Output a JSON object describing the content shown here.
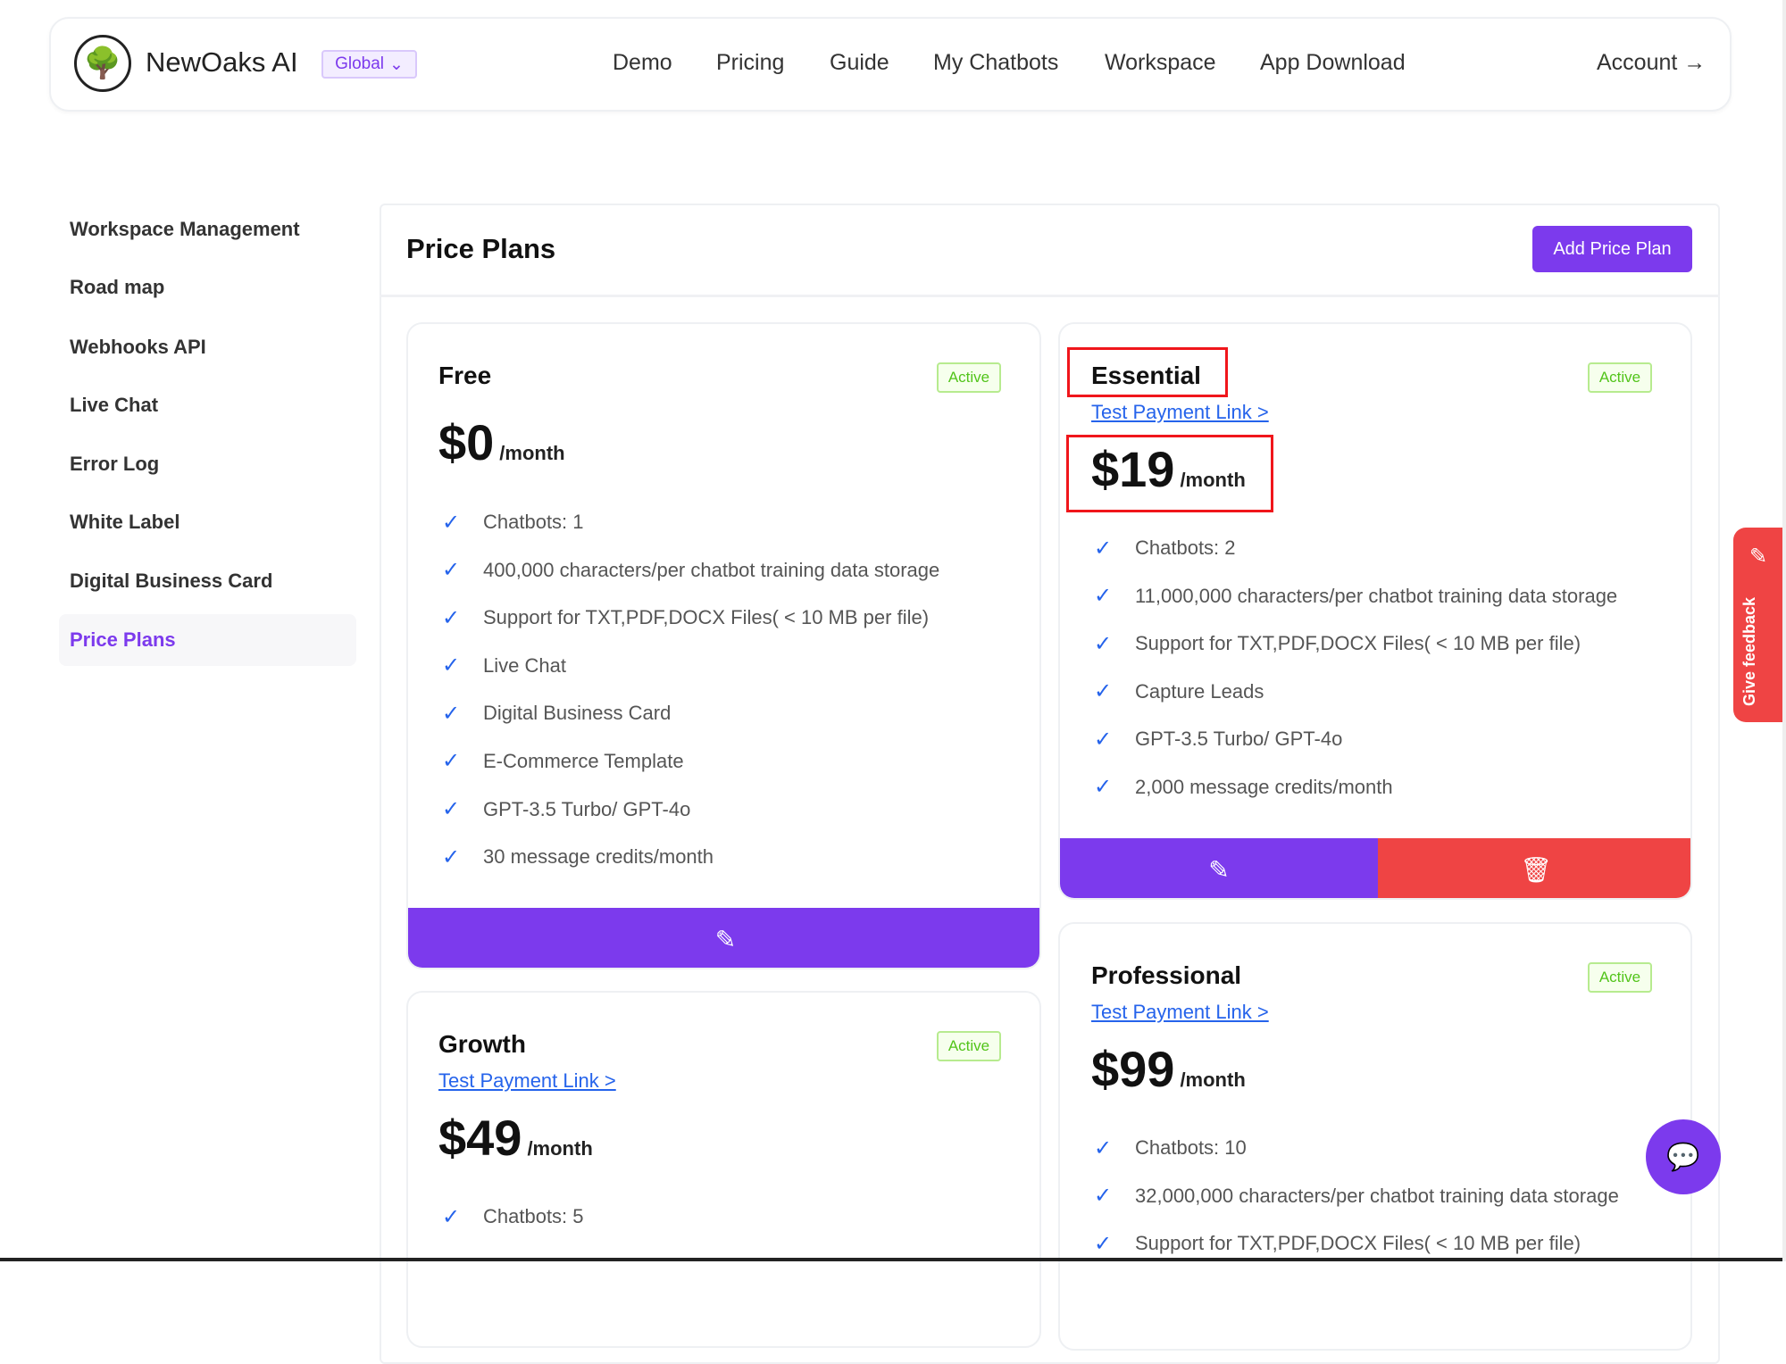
{
  "header": {
    "brand": "NewOaks AI",
    "region": "Global",
    "nav": [
      "Demo",
      "Pricing",
      "Guide",
      "My Chatbots",
      "Workspace",
      "App Download"
    ],
    "account": "Account"
  },
  "sidebar": {
    "items": [
      "Workspace Management",
      "Road map",
      "Webhooks API",
      "Live Chat",
      "Error Log",
      "White Label",
      "Digital Business Card",
      "Price Plans"
    ],
    "active": "Price Plans"
  },
  "main": {
    "title": "Price Plans",
    "add_button": "Add Price Plan"
  },
  "plans": [
    {
      "name": "Free",
      "status": "Active",
      "price": "$0",
      "period": "/month",
      "features": [
        "Chatbots: 1",
        "400,000 characters/per chatbot training data storage",
        "Support for TXT,PDF,DOCX Files( < 10 MB per file)",
        "Live Chat",
        "Digital Business Card",
        "E-Commerce Template",
        "GPT-3.5 Turbo/ GPT-4o",
        "30 message credits/month"
      ]
    },
    {
      "name": "Essential",
      "status": "Active",
      "link": "Test Payment Link >",
      "price": "$19",
      "period": "/month",
      "features": [
        "Chatbots: 2",
        "11,000,000 characters/per chatbot training data storage",
        "Support for TXT,PDF,DOCX Files( < 10 MB per file)",
        "Capture Leads",
        "GPT-3.5 Turbo/ GPT-4o",
        "2,000 message credits/month"
      ]
    },
    {
      "name": "Growth",
      "status": "Active",
      "link": "Test Payment Link >",
      "price": "$49",
      "period": "/month",
      "features": [
        "Chatbots: 5"
      ]
    },
    {
      "name": "Professional",
      "status": "Active",
      "link": "Test Payment Link >",
      "price": "$99",
      "period": "/month",
      "features": [
        "Chatbots: 10",
        "32,000,000 characters/per chatbot training data storage",
        "Support for TXT,PDF,DOCX Files( < 10 MB per file)"
      ]
    }
  ],
  "feedback": "Give feedback",
  "colors": {
    "primary": "#7c3aed",
    "danger": "#ef4444",
    "active": "#52c41a",
    "link": "#2563eb"
  }
}
